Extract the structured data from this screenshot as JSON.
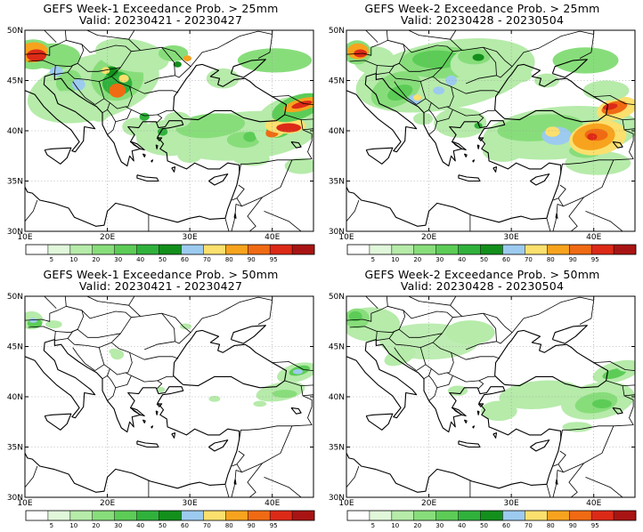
{
  "panels": [
    {
      "title": "GEFS Week-1 Exceedance Prob. > 25mm",
      "valid": "Valid: 20230421 - 20230427"
    },
    {
      "title": "GEFS Week-2 Exceedance Prob. > 25mm",
      "valid": "Valid: 20230428 - 20230504"
    },
    {
      "title": "GEFS Week-1 Exceedance Prob. > 50mm",
      "valid": "Valid: 20230421 - 20230427"
    },
    {
      "title": "GEFS Week-2 Exceedance Prob. > 50mm",
      "valid": "Valid: 20230428 - 20230504"
    }
  ],
  "axes": {
    "lat_labels": [
      "50N",
      "45N",
      "40N",
      "35N",
      "30N"
    ],
    "lon_labels": [
      "10E",
      "20E",
      "30E",
      "40E"
    ],
    "lat_range": [
      30,
      50
    ],
    "lon_range": [
      10,
      45
    ]
  },
  "colorbar": {
    "levels": [
      "5",
      "10",
      "20",
      "30",
      "40",
      "50",
      "60",
      "70",
      "80",
      "90",
      "95"
    ],
    "colors": [
      "#ffffff",
      "#e1f7da",
      "#b6ebaa",
      "#88dd7b",
      "#5ccc57",
      "#30b13c",
      "#138f1c",
      "#9ccbef",
      "#fbe06e",
      "#f7a31e",
      "#f06a13",
      "#dc2a17",
      "#a81413"
    ]
  }
}
